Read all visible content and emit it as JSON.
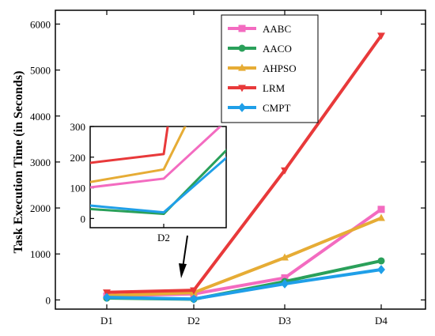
{
  "chart_data": {
    "type": "line",
    "title": "",
    "xlabel": "",
    "ylabel": "Task Execution Time (in Seconds)",
    "categories": [
      "D1",
      "D2",
      "D3",
      "D4"
    ],
    "ylim": [
      -200,
      6300
    ],
    "yticks": [
      0,
      1000,
      2000,
      3000,
      4000,
      5000,
      6000
    ],
    "grid": false,
    "legend_position": "top-right",
    "series": [
      {
        "name": "AABC",
        "color": "#f36bc0",
        "marker": "square",
        "values": [
          85,
          130,
          480,
          1970
        ]
      },
      {
        "name": "AACO",
        "color": "#2aa05a",
        "marker": "circle",
        "values": [
          40,
          15,
          400,
          850
        ]
      },
      {
        "name": "AHPSO",
        "color": "#e6ac35",
        "marker": "triangle-up",
        "values": [
          95,
          160,
          920,
          1780
        ]
      },
      {
        "name": "LRM",
        "color": "#e8393a",
        "marker": "triangle-down",
        "values": [
          165,
          210,
          2820,
          5750
        ]
      },
      {
        "name": "CMPT",
        "color": "#1f9fe8",
        "marker": "diamond",
        "values": [
          55,
          20,
          350,
          660
        ]
      }
    ],
    "inset": {
      "xlabel_tick": "D2",
      "yticks": [
        0,
        100,
        200,
        300
      ],
      "ylim": [
        -30,
        300
      ],
      "description_of_range": "zoom around D2"
    }
  }
}
